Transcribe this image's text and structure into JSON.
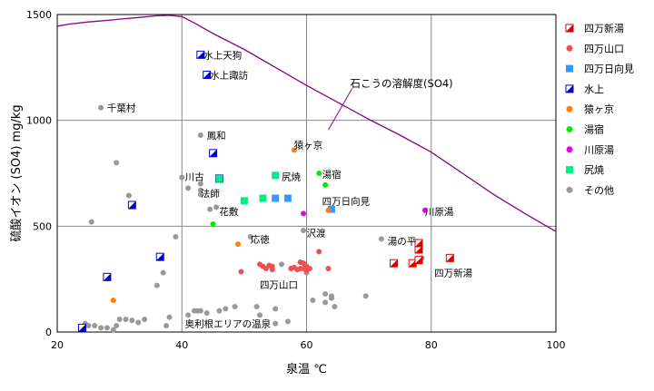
{
  "chart_data": {
    "type": "scatter",
    "xlabel": "泉温 ℃",
    "ylabel": "硫酸イオン (SO4)  mg/kg",
    "xlim": [
      20,
      100
    ],
    "ylim": [
      0,
      1500
    ],
    "xticks": [
      20,
      40,
      60,
      80,
      100
    ],
    "yticks": [
      0,
      500,
      1000,
      1500
    ],
    "grid": true,
    "legend_position": "right",
    "curve": {
      "name": "石こうの溶解度(SO4)",
      "color": "#8b008b",
      "points": [
        [
          20,
          1445
        ],
        [
          22,
          1455
        ],
        [
          25,
          1465
        ],
        [
          28,
          1472
        ],
        [
          30,
          1478
        ],
        [
          33,
          1486
        ],
        [
          36,
          1494
        ],
        [
          38,
          1496
        ],
        [
          40,
          1490
        ],
        [
          42,
          1460
        ],
        [
          45,
          1410
        ],
        [
          50,
          1335
        ],
        [
          55,
          1250
        ],
        [
          60,
          1165
        ],
        [
          65,
          1085
        ],
        [
          70,
          1005
        ],
        [
          75,
          930
        ],
        [
          80,
          850
        ],
        [
          85,
          750
        ],
        [
          90,
          650
        ],
        [
          95,
          560
        ],
        [
          100,
          475
        ]
      ]
    },
    "series": [
      {
        "name": "四万新湯",
        "marker": "half-square",
        "color": "#e00000",
        "points": [
          [
            74,
            325
          ],
          [
            77,
            325
          ],
          [
            78,
            340
          ],
          [
            78,
            390
          ],
          [
            78,
            420
          ],
          [
            83,
            350
          ]
        ]
      },
      {
        "name": "四万山口",
        "marker": "circle",
        "color": "#f05050",
        "points": [
          [
            49.5,
            285
          ],
          [
            52.5,
            320
          ],
          [
            53,
            310
          ],
          [
            53.5,
            300
          ],
          [
            54,
            315
          ],
          [
            54.5,
            295
          ],
          [
            54.5,
            310
          ],
          [
            57.5,
            300
          ],
          [
            58,
            305
          ],
          [
            58.5,
            295
          ],
          [
            59,
            300
          ],
          [
            59,
            330
          ],
          [
            59.5,
            300
          ],
          [
            59.5,
            325
          ],
          [
            60,
            310
          ],
          [
            60,
            290
          ],
          [
            60.5,
            300
          ],
          [
            62,
            380
          ],
          [
            63.5,
            300
          ]
        ]
      },
      {
        "name": "四万日向見",
        "marker": "square",
        "color": "#3399ff",
        "points": [
          [
            55,
            632
          ],
          [
            57,
            632
          ],
          [
            64,
            580
          ]
        ]
      },
      {
        "name": "水上",
        "marker": "half-square",
        "color": "#0000cc",
        "points": [
          [
            43,
            1310
          ],
          [
            44,
            1215
          ],
          [
            45,
            845
          ],
          [
            46,
            725
          ],
          [
            32,
            600
          ],
          [
            36.5,
            355
          ],
          [
            28,
            260
          ],
          [
            24,
            20
          ]
        ]
      },
      {
        "name": "猿ヶ京",
        "marker": "circle",
        "color": "#ff8000",
        "points": [
          [
            58,
            860
          ],
          [
            63.5,
            575
          ],
          [
            49,
            415
          ],
          [
            29,
            150
          ]
        ]
      },
      {
        "name": "湯宿",
        "marker": "circle",
        "color": "#00ee00",
        "points": [
          [
            62,
            750
          ],
          [
            63,
            695
          ],
          [
            45,
            510
          ],
          [
            46,
            725
          ]
        ]
      },
      {
        "name": "川原湯",
        "marker": "circle",
        "color": "#ee00ee",
        "points": [
          [
            59.5,
            560
          ],
          [
            79,
            575
          ]
        ]
      },
      {
        "name": "尻焼",
        "marker": "square",
        "color": "#00ee88",
        "points": [
          [
            55,
            740
          ],
          [
            50,
            620
          ],
          [
            53,
            632
          ],
          [
            46,
            725
          ]
        ]
      },
      {
        "name": "その他",
        "marker": "circle",
        "color": "#999999",
        "points": [
          [
            27,
            1060
          ],
          [
            43,
            930
          ],
          [
            29.5,
            800
          ],
          [
            40,
            730
          ],
          [
            41,
            680
          ],
          [
            43,
            700
          ],
          [
            43,
            670
          ],
          [
            43,
            650
          ],
          [
            44.5,
            580
          ],
          [
            45.5,
            590
          ],
          [
            31.5,
            645
          ],
          [
            25.5,
            520
          ],
          [
            39,
            450
          ],
          [
            51,
            450
          ],
          [
            59.5,
            480
          ],
          [
            72,
            440
          ],
          [
            78.5,
            350
          ],
          [
            36,
            220
          ],
          [
            37,
            280
          ],
          [
            34,
            60
          ],
          [
            38,
            70
          ],
          [
            41,
            80
          ],
          [
            42,
            100
          ],
          [
            42.5,
            100
          ],
          [
            43,
            100
          ],
          [
            44,
            90
          ],
          [
            46,
            100
          ],
          [
            47,
            110
          ],
          [
            48.5,
            120
          ],
          [
            52,
            120
          ],
          [
            52.5,
            80
          ],
          [
            55,
            110
          ],
          [
            56,
            320
          ],
          [
            60,
            280
          ],
          [
            61,
            150
          ],
          [
            63,
            140
          ],
          [
            64,
            160
          ],
          [
            69.5,
            170
          ],
          [
            24.5,
            40
          ],
          [
            25,
            30
          ],
          [
            26,
            30
          ],
          [
            27,
            20
          ],
          [
            28,
            20
          ],
          [
            29,
            10
          ],
          [
            29.5,
            30
          ],
          [
            30,
            60
          ],
          [
            31,
            60
          ],
          [
            32,
            55
          ],
          [
            33,
            45
          ],
          [
            37.5,
            30
          ],
          [
            55,
            40
          ],
          [
            57,
            50
          ],
          [
            63,
            180
          ],
          [
            64,
            170
          ],
          [
            64.5,
            120
          ]
        ]
      }
    ],
    "annotations": [
      {
        "text": "水上天狗",
        "x": 43.5,
        "y": 1310
      },
      {
        "text": "水上諏訪",
        "x": 44.5,
        "y": 1215
      },
      {
        "text": "千葉村",
        "x": 28,
        "y": 1060
      },
      {
        "text": "鳳和",
        "x": 44,
        "y": 930
      },
      {
        "text": "猿ヶ京",
        "x": 58,
        "y": 885
      },
      {
        "text": "湯宿",
        "x": 62.5,
        "y": 745
      },
      {
        "text": "尻焼",
        "x": 56,
        "y": 735
      },
      {
        "text": "川古",
        "x": 40.5,
        "y": 735
      },
      {
        "text": "法師",
        "x": 43,
        "y": 655
      },
      {
        "text": "四万日向見",
        "x": 62.5,
        "y": 620
      },
      {
        "text": "花敷",
        "x": 46,
        "y": 570
      },
      {
        "text": "川原湯",
        "x": 79,
        "y": 570
      },
      {
        "text": "沢渡",
        "x": 60,
        "y": 470
      },
      {
        "text": "応徳",
        "x": 51,
        "y": 440
      },
      {
        "text": "湯の平",
        "x": 73,
        "y": 430
      },
      {
        "text": "四万新湯",
        "x": 80.5,
        "y": 280
      },
      {
        "text": "四万山口",
        "x": 52.5,
        "y": 225
      },
      {
        "text": "奥利根エリアの温泉",
        "x": 40.5,
        "y": 40
      },
      {
        "text": "石こうの溶解度(SO4)",
        "x": 67,
        "y": 1175
      }
    ]
  }
}
